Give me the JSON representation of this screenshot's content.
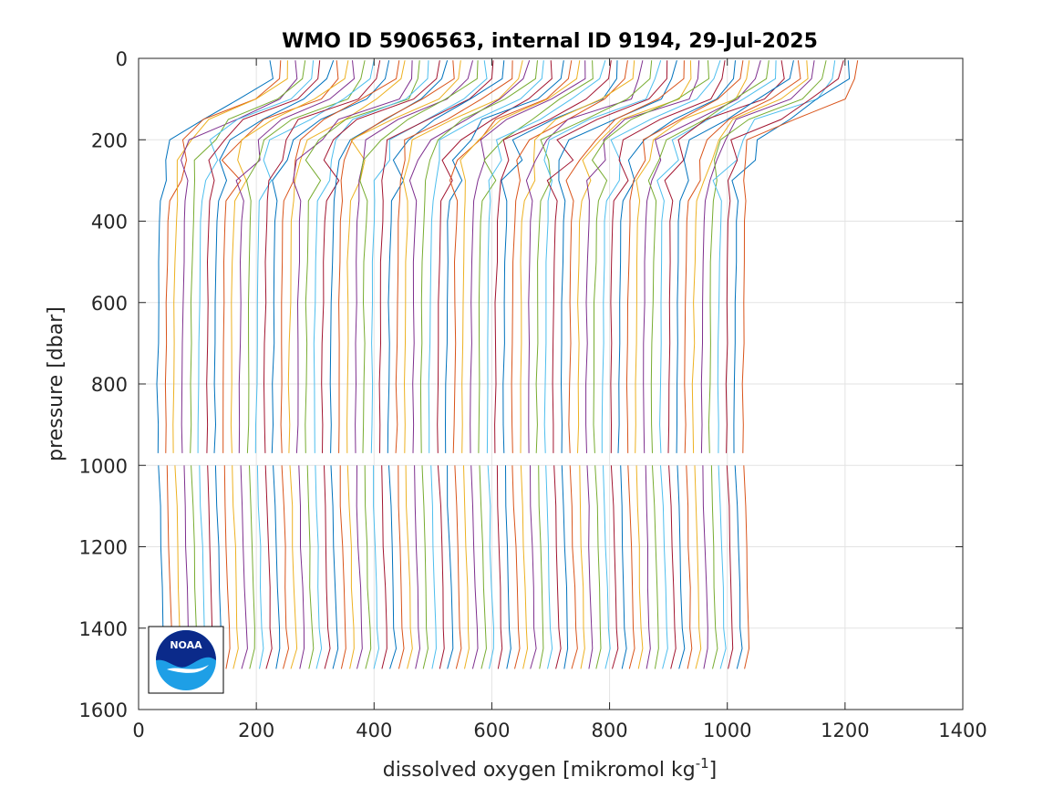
{
  "chart_data": {
    "type": "line",
    "title": "WMO ID 5906563, internal ID 9194, 29-Jul-2025",
    "xlabel": "dissolved oxygen [mikromol kg",
    "xlabel_superscript": "-1",
    "xlabel_suffix": "]",
    "ylabel": "pressure [dbar]",
    "xlim": [
      0,
      1400
    ],
    "ylim": [
      1600,
      0
    ],
    "y_reversed": true,
    "grid": true,
    "xticks": [
      0,
      200,
      400,
      600,
      800,
      1000,
      1200,
      1400
    ],
    "yticks": [
      0,
      200,
      400,
      600,
      800,
      1000,
      1200,
      1400,
      1600
    ],
    "xtick_labels": [
      "0",
      "200",
      "400",
      "600",
      "800",
      "1000",
      "1200",
      "1400"
    ],
    "ytick_labels": [
      "0",
      "200",
      "400",
      "600",
      "800",
      "1000",
      "1200",
      "1400",
      "1600"
    ],
    "profile_count": 72,
    "offset_between_profiles": 14,
    "first_profile_deep_value": 28,
    "colors": [
      "#0072BD",
      "#D95319",
      "#EDB120",
      "#7E2F8E",
      "#77AC30",
      "#4DBEEE",
      "#A2142F"
    ],
    "reference_profile": {
      "pressure": [
        5,
        50,
        100,
        150,
        200,
        250,
        300,
        350,
        400,
        500,
        600,
        700,
        800,
        900,
        970,
        1000,
        1100,
        1200,
        1300,
        1400,
        1450,
        1500
      ],
      "oxygen": [
        200,
        196,
        160,
        80,
        30,
        20,
        14,
        10,
        8,
        6,
        5,
        5,
        4,
        4,
        4,
        6,
        8,
        10,
        12,
        14,
        16,
        8
      ]
    },
    "gap_pressure": 990
  },
  "logo": {
    "text": "NOAA",
    "icon": "noaa-logo-icon"
  }
}
